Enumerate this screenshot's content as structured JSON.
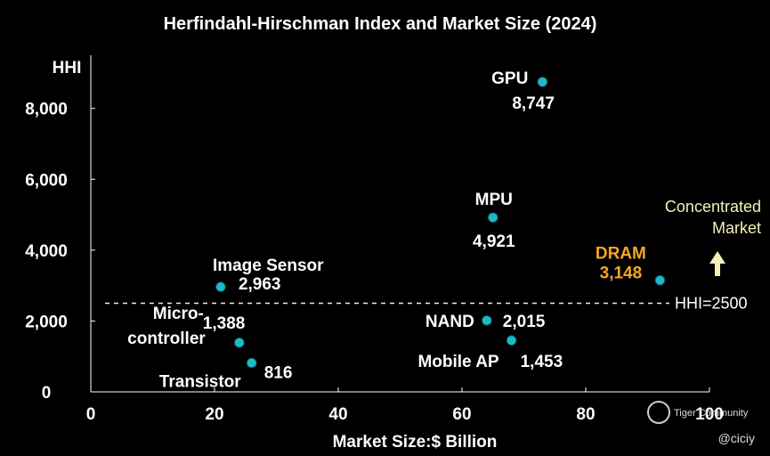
{
  "chart_data": {
    "type": "scatter",
    "title": "Herfindahl-Hirschman Index and Market Size (2024)",
    "xlabel": "Market Size:$ Billion",
    "ylabel": "HHI",
    "xlim": [
      0,
      100
    ],
    "ylim": [
      0,
      9500
    ],
    "xticks": [
      0,
      20,
      40,
      60,
      80,
      100
    ],
    "yticks": [
      0,
      2000,
      4000,
      6000,
      8000
    ],
    "xtick_labels": [
      "0",
      "20",
      "40",
      "60",
      "80",
      "100"
    ],
    "ytick_labels": [
      "0",
      "2,000",
      "4,000",
      "6,000",
      "8,000"
    ],
    "grid": false,
    "point_color": "#1fb8c8",
    "highlight_color": "#f5a623",
    "points": [
      {
        "name": "GPU",
        "value_label": "8,747",
        "x": 73,
        "y": 8747,
        "highlight": false
      },
      {
        "name": "MPU",
        "value_label": "4,921",
        "x": 65,
        "y": 4921,
        "highlight": false
      },
      {
        "name": "DRAM",
        "value_label": "3,148",
        "x": 92,
        "y": 3148,
        "highlight": true
      },
      {
        "name": "Image Sensor",
        "value_label": "2,963",
        "x": 21,
        "y": 2963,
        "highlight": false
      },
      {
        "name": "NAND",
        "value_label": "2,015",
        "x": 64,
        "y": 2015,
        "highlight": false
      },
      {
        "name": "Mobile AP",
        "value_label": "1,453",
        "x": 68,
        "y": 1453,
        "highlight": false
      },
      {
        "name": "Micro-\ncontroller",
        "value_label": "1,388",
        "x": 24,
        "y": 1388,
        "highlight": false
      },
      {
        "name": "Transistor",
        "value_label": "816",
        "x": 26,
        "y": 816,
        "highlight": false
      }
    ],
    "reference_line": {
      "y": 2500,
      "label": "HHI=2500",
      "color": "#f3f0b8",
      "style": "dashed"
    },
    "annotation": {
      "text": "Concentrated\nMarket",
      "arrow": "up",
      "color": "#f3f0b8"
    }
  },
  "watermark": "Tiger Community",
  "credit": "@ciciy"
}
